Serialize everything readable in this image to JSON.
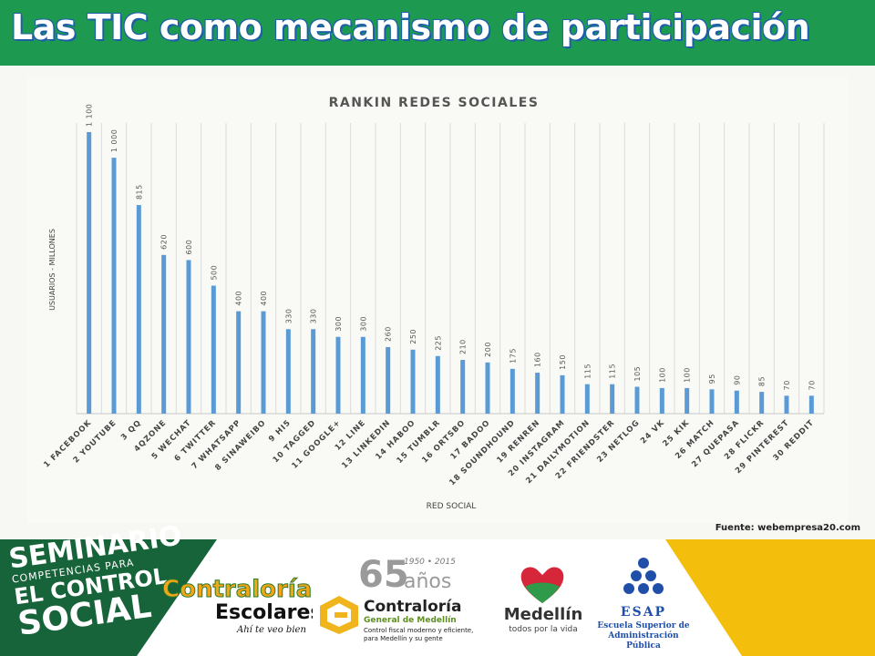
{
  "header": {
    "title": "Las TIC como mecanismo de participación"
  },
  "chart_data": {
    "type": "bar",
    "title": "RANKIN REDES SOCIALES",
    "xlabel": "RED SOCIAL",
    "ylabel": "USUARIOS - MILLONES",
    "ylim": [
      0,
      1100
    ],
    "grid": "vertical",
    "bar_color": "#5b9bd5",
    "categories": [
      "1 FACEBOOK",
      "2 YOUTUBE",
      "3 QQ",
      "4QZONE",
      "5 WECHAT",
      "6 TWITTER",
      "7 WHATSAPP",
      "8 SINAWEIBO",
      "9 HI5",
      "10 TAGGED",
      "11 GOOGLE+",
      "12 LINE",
      "13 LINKEDIN",
      "14 HABOO",
      "15 TUMBLR",
      "16 ORTSBO",
      "17 BADOO",
      "18 SOUNDHOUND",
      "19 RENREN",
      "20 INSTAGRAM",
      "21 DAILYMOTION",
      "22 FRIENDSTER",
      "23 NETLOG",
      "24 VK",
      "25 KIK",
      "26 MATCH",
      "27 QUEPASA",
      "28 FLICKR",
      "29 PINTEREST",
      "30 REDDIT"
    ],
    "values": [
      1100,
      1000,
      815,
      620,
      600,
      500,
      400,
      400,
      330,
      330,
      300,
      300,
      260,
      250,
      225,
      210,
      200,
      175,
      160,
      150,
      115,
      115,
      105,
      100,
      100,
      95,
      90,
      85,
      70,
      70
    ],
    "value_labels": [
      "1 100",
      "1 000",
      "815",
      "620",
      "600",
      "500",
      "400",
      "400",
      "330",
      "330",
      "300",
      "300",
      "260",
      "250",
      "225",
      "210",
      "200",
      "175",
      "160",
      "150",
      "115",
      "115",
      "105",
      "100",
      "100",
      "95",
      "90",
      "85",
      "70",
      "70"
    ]
  },
  "source": "Fuente: webempresa20.com",
  "footer": {
    "seminario": {
      "line1": "SEMINARIO",
      "line2": "COMPETENCIAS PARA",
      "line3": "EL CONTROL",
      "line4": "SOCIAL",
      "bg_color": "#17633a"
    },
    "contralorias": {
      "line1": "Contralorías",
      "line2": "Escolares",
      "tagline": "Ahí te veo bien"
    },
    "contraloria": {
      "number": "65",
      "years": "1950 • 2015",
      "anos": "años",
      "name": "Contraloría",
      "subtitle": "General de Medellín",
      "tagline": "Control fiscal moderno y eficiente, para Medellín y su gente"
    },
    "medellin": {
      "name": "Medellín",
      "tagline": "todos por la vida"
    },
    "esap": {
      "word": "ESAP",
      "line1": "Escuela Superior de",
      "line2": "Administración Pública"
    },
    "accent_yellow": "#f3bf0c",
    "accent_green": "#1e9a50"
  }
}
